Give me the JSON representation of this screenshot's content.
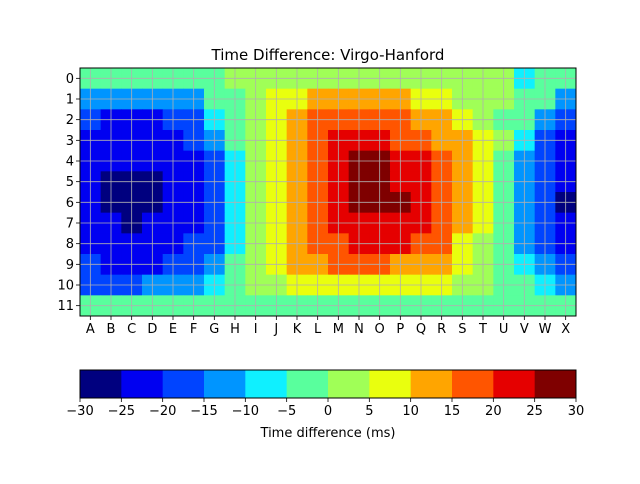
{
  "chart_data": {
    "type": "heatmap",
    "title": "Time Difference: Virgo-Hanford",
    "x_categories": [
      "A",
      "B",
      "C",
      "D",
      "E",
      "F",
      "G",
      "H",
      "I",
      "J",
      "K",
      "L",
      "M",
      "N",
      "O",
      "P",
      "Q",
      "R",
      "S",
      "T",
      "U",
      "V",
      "W",
      "X"
    ],
    "y_categories": [
      "0",
      "1",
      "2",
      "3",
      "4",
      "5",
      "6",
      "7",
      "8",
      "9",
      "10",
      "11"
    ],
    "grid": true,
    "values": [
      [
        -2,
        -2,
        -2,
        -2,
        -2,
        -2,
        -2,
        2,
        2,
        2,
        2,
        2,
        2,
        2,
        2,
        2,
        2,
        2,
        2,
        2,
        2,
        -7,
        -2,
        -2
      ],
      [
        -12,
        -12,
        -12,
        -12,
        -12,
        -12,
        -2,
        -2,
        2,
        7,
        7,
        12,
        12,
        12,
        12,
        12,
        7,
        7,
        2,
        2,
        2,
        -2,
        -2,
        -12
      ],
      [
        -17,
        -22,
        -22,
        -22,
        -17,
        -17,
        -7,
        -2,
        2,
        7,
        12,
        17,
        17,
        17,
        17,
        17,
        12,
        12,
        7,
        2,
        -2,
        -2,
        -12,
        -17
      ],
      [
        -22,
        -22,
        -22,
        -22,
        -22,
        -17,
        -12,
        -2,
        2,
        7,
        12,
        17,
        22,
        22,
        22,
        17,
        17,
        12,
        12,
        7,
        2,
        -7,
        -17,
        -22
      ],
      [
        -22,
        -22,
        -22,
        -22,
        -22,
        -22,
        -17,
        -7,
        2,
        7,
        12,
        17,
        22,
        27,
        27,
        22,
        22,
        17,
        12,
        7,
        -2,
        -12,
        -17,
        -22
      ],
      [
        -22,
        -27,
        -27,
        -27,
        -22,
        -22,
        -17,
        -7,
        2,
        7,
        12,
        17,
        22,
        27,
        27,
        22,
        22,
        17,
        12,
        7,
        -2,
        -12,
        -17,
        -22
      ],
      [
        -22,
        -27,
        -27,
        -27,
        -22,
        -22,
        -17,
        -7,
        2,
        7,
        12,
        17,
        22,
        27,
        27,
        27,
        22,
        17,
        12,
        7,
        -2,
        -12,
        -17,
        -27
      ],
      [
        -22,
        -22,
        -27,
        -22,
        -22,
        -22,
        -17,
        -7,
        2,
        7,
        12,
        17,
        22,
        22,
        22,
        22,
        22,
        17,
        12,
        7,
        -2,
        -12,
        -17,
        -22
      ],
      [
        -22,
        -22,
        -22,
        -22,
        -22,
        -17,
        -17,
        -7,
        2,
        7,
        12,
        17,
        17,
        22,
        22,
        22,
        17,
        17,
        7,
        2,
        -2,
        -12,
        -17,
        -22
      ],
      [
        -17,
        -22,
        -22,
        -22,
        -17,
        -17,
        -12,
        -2,
        2,
        7,
        12,
        12,
        17,
        17,
        17,
        12,
        12,
        12,
        7,
        2,
        -2,
        -7,
        -12,
        -17
      ],
      [
        -17,
        -17,
        -17,
        -12,
        -12,
        -12,
        -7,
        -2,
        2,
        2,
        7,
        7,
        7,
        7,
        7,
        7,
        7,
        7,
        2,
        2,
        -2,
        -2,
        -7,
        -12
      ],
      [
        -2,
        -2,
        -2,
        -2,
        -2,
        -2,
        -2,
        -2,
        -2,
        -2,
        -2,
        -2,
        -2,
        -2,
        -2,
        -2,
        -2,
        -2,
        -2,
        -2,
        -2,
        -2,
        -2,
        -2
      ]
    ],
    "colorbar": {
      "label": "Time difference (ms)",
      "range": [
        -30,
        30
      ],
      "boundaries": [
        -30,
        -25,
        -20,
        -15,
        -10,
        -5,
        0,
        5,
        10,
        15,
        20,
        25,
        30
      ],
      "tick_labels": [
        "−30",
        "−25",
        "−20",
        "−15",
        "−10",
        "−5",
        "0",
        "5",
        "10",
        "15",
        "20",
        "25",
        "30"
      ],
      "colors": [
        "#00007f",
        "#0000f1",
        "#0044ff",
        "#0095ff",
        "#0ff0ff",
        "#59ff9d",
        "#a0ff57",
        "#e9ff0e",
        "#ffa500",
        "#ff5500",
        "#e50000",
        "#7f0000"
      ]
    },
    "grid_color": "#b0b0b0"
  }
}
